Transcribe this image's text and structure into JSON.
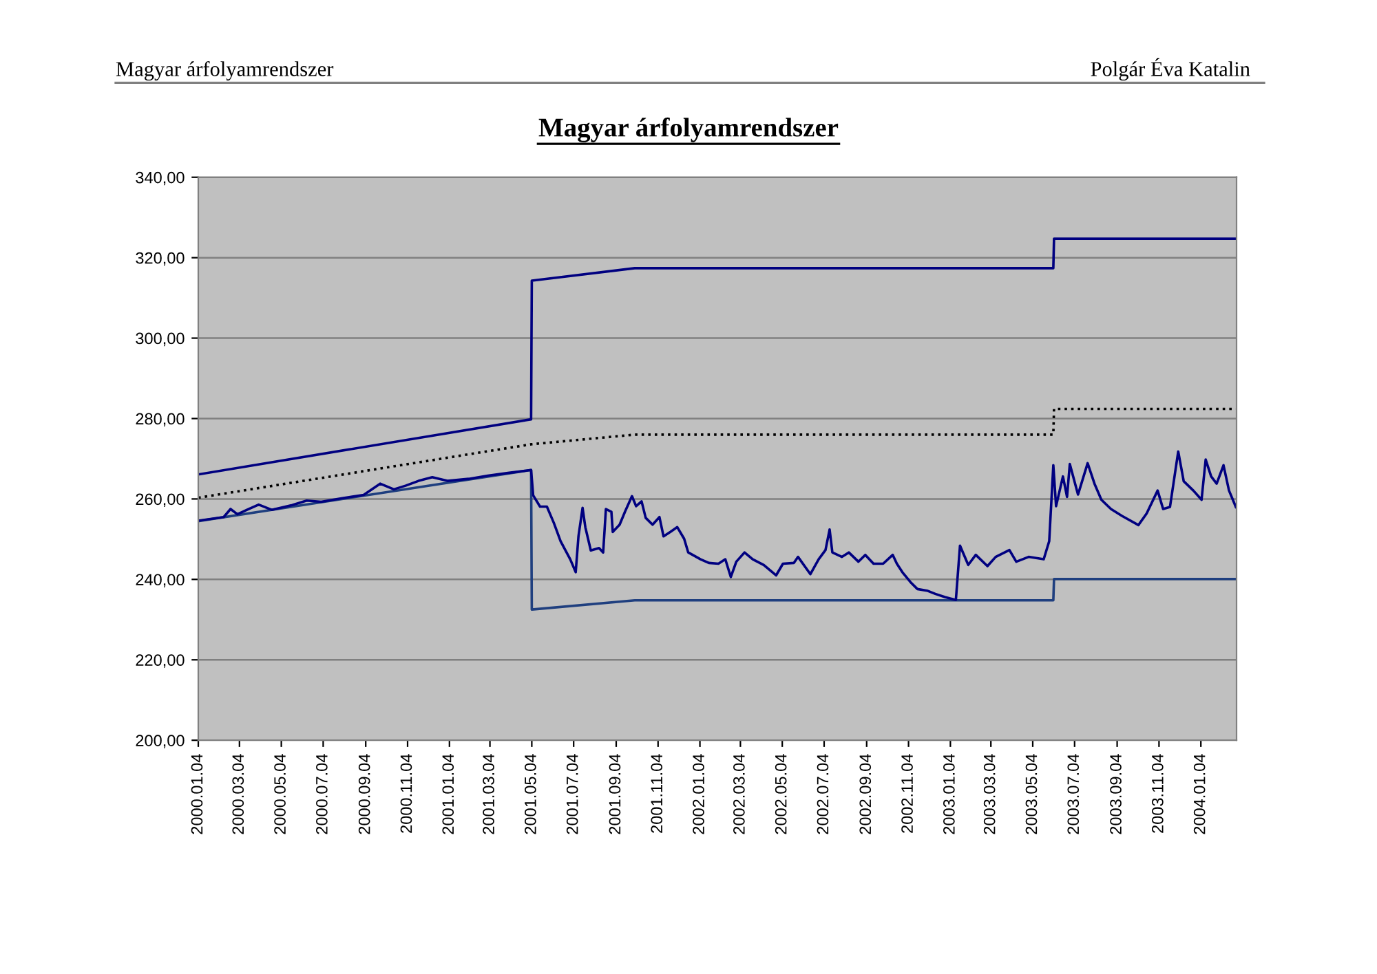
{
  "chart_data": {
    "type": "line",
    "title": "Magyar árfolyamrendszer",
    "annotations": [
      "Magyar árfolyamrendszer",
      "Polgár Éva Katalin"
    ],
    "xlim": [
      "2000-01-04",
      "2004-02-25"
    ],
    "xticks": [
      {
        "value": "2000-01-04",
        "label": "2000.01.04"
      },
      {
        "value": "2000-03-04",
        "label": "2000.03.04"
      },
      {
        "value": "2000-05-04",
        "label": "2000.05.04"
      },
      {
        "value": "2000-07-04",
        "label": "2000.07.04"
      },
      {
        "value": "2000-09-04",
        "label": "2000.09.04"
      },
      {
        "value": "2000-11-04",
        "label": "2000.11.04"
      },
      {
        "value": "2001-01-04",
        "label": "2001.01.04"
      },
      {
        "value": "2001-03-04",
        "label": "2001.03.04"
      },
      {
        "value": "2001-05-04",
        "label": "2001.05.04"
      },
      {
        "value": "2001-07-04",
        "label": "2001.07.04"
      },
      {
        "value": "2001-09-04",
        "label": "2001.09.04"
      },
      {
        "value": "2001-11-04",
        "label": "2001.11.04"
      },
      {
        "value": "2002-01-04",
        "label": "2002.01.04"
      },
      {
        "value": "2002-03-04",
        "label": "2002.03.04"
      },
      {
        "value": "2002-05-04",
        "label": "2002.05.04"
      },
      {
        "value": "2002-07-04",
        "label": "2002.07.04"
      },
      {
        "value": "2002-09-04",
        "label": "2002.09.04"
      },
      {
        "value": "2002-11-04",
        "label": "2002.11.04"
      },
      {
        "value": "2003-01-04",
        "label": "2003.01.04"
      },
      {
        "value": "2003-03-04",
        "label": "2003.03.04"
      },
      {
        "value": "2003-05-04",
        "label": "2003.05.04"
      },
      {
        "value": "2003-07-04",
        "label": "2003.07.04"
      },
      {
        "value": "2003-09-04",
        "label": "2003.09.04"
      },
      {
        "value": "2003-11-04",
        "label": "2003.11.04"
      },
      {
        "value": "2004-01-04",
        "label": "2004.01.04"
      }
    ],
    "ylim": [
      200,
      340
    ],
    "yticks": [
      {
        "value": 200,
        "label": "200,00"
      },
      {
        "value": 220,
        "label": "220,00"
      },
      {
        "value": 240,
        "label": "240,00"
      },
      {
        "value": 260,
        "label": "260,00"
      },
      {
        "value": 280,
        "label": "280,00"
      },
      {
        "value": 300,
        "label": "300,00"
      },
      {
        "value": 320,
        "label": "320,00"
      },
      {
        "value": 340,
        "label": "340,00"
      }
    ],
    "grid": "y",
    "legend": false,
    "marker": "none",
    "series": [
      {
        "color": "#000080",
        "line_style": "solid",
        "x": [
          "2000-01-04",
          "2001-05-03",
          "2001-05-04",
          "2001-10-01",
          "2003-06-03",
          "2003-06-04",
          "2004-02-25"
        ],
        "values": [
          266.1,
          279.8,
          314.3,
          317.4,
          317.4,
          324.7,
          324.7
        ]
      },
      {
        "color": "#000000",
        "line_style": "dotted",
        "x": [
          "2000-01-04",
          "2001-05-03",
          "2001-10-01",
          "2003-06-03",
          "2003-06-04",
          "2004-02-25"
        ],
        "values": [
          260.3,
          273.6,
          276.0,
          276.0,
          282.4,
          282.4
        ]
      },
      {
        "color": "#1f3f7f",
        "line_style": "solid",
        "x": [
          "2000-01-04",
          "2001-05-03",
          "2001-05-04",
          "2001-10-01",
          "2003-06-03",
          "2003-06-04",
          "2004-02-25"
        ],
        "values": [
          254.5,
          267.2,
          232.5,
          234.8,
          234.8,
          240.1,
          240.1
        ]
      },
      {
        "color": "#000080",
        "line_style": "solid",
        "x": [
          "2000-01-04",
          "2000-02-10",
          "2000-02-20",
          "2000-03-01",
          "2000-03-15",
          "2000-04-01",
          "2000-04-20",
          "2000-05-20",
          "2000-06-10",
          "2000-07-01",
          "2000-08-01",
          "2000-09-01",
          "2000-09-25",
          "2000-10-15",
          "2000-11-01",
          "2000-11-20",
          "2000-12-10",
          "2001-01-01",
          "2001-02-01",
          "2001-03-01",
          "2001-04-01",
          "2001-05-03",
          "2001-05-06",
          "2001-05-16",
          "2001-05-26",
          "2001-06-05",
          "2001-06-15",
          "2001-06-29",
          "2001-07-07",
          "2001-07-11",
          "2001-07-17",
          "2001-07-21",
          "2001-07-29",
          "2001-08-10",
          "2001-08-16",
          "2001-08-20",
          "2001-08-28",
          "2001-08-30",
          "2001-09-09",
          "2001-09-17",
          "2001-09-27",
          "2001-10-03",
          "2001-10-11",
          "2001-10-17",
          "2001-10-27",
          "2001-11-06",
          "2001-11-12",
          "2001-11-22",
          "2001-12-02",
          "2001-12-12",
          "2001-12-18",
          "2002-01-05",
          "2002-01-17",
          "2002-01-31",
          "2002-02-10",
          "2002-02-18",
          "2002-02-26",
          "2002-03-10",
          "2002-03-22",
          "2002-04-07",
          "2002-04-25",
          "2002-05-05",
          "2002-05-21",
          "2002-05-27",
          "2002-06-14",
          "2002-06-26",
          "2002-07-06",
          "2002-07-12",
          "2002-07-16",
          "2002-07-30",
          "2002-08-09",
          "2002-08-23",
          "2002-09-02",
          "2002-09-14",
          "2002-09-28",
          "2002-10-12",
          "2002-10-18",
          "2002-10-26",
          "2002-11-07",
          "2002-11-17",
          "2002-12-01",
          "2002-12-13",
          "2002-12-27",
          "2003-01-12",
          "2003-01-18",
          "2003-01-30",
          "2003-02-10",
          "2003-02-27",
          "2003-03-11",
          "2003-03-31",
          "2003-04-10",
          "2003-04-28",
          "2003-05-20",
          "2003-05-28",
          "2003-06-03",
          "2003-06-07",
          "2003-06-17",
          "2003-06-23",
          "2003-06-27",
          "2003-07-09",
          "2003-07-23",
          "2003-08-02",
          "2003-08-12",
          "2003-08-26",
          "2003-09-11",
          "2003-10-05",
          "2003-10-17",
          "2003-11-02",
          "2003-11-10",
          "2003-11-20",
          "2003-12-02",
          "2003-12-10",
          "2003-12-24",
          "2004-01-05",
          "2004-01-11",
          "2004-01-19",
          "2004-01-27",
          "2004-02-06",
          "2004-02-14",
          "2004-02-24"
        ],
        "values": [
          254.6,
          255.5,
          257.5,
          256.2,
          257.3,
          258.6,
          257.3,
          258.5,
          259.6,
          259.3,
          260.2,
          261.0,
          263.8,
          262.4,
          263.3,
          264.5,
          265.4,
          264.5,
          265.0,
          265.8,
          266.5,
          267.2,
          260.9,
          258.1,
          258.1,
          254.1,
          249.5,
          245.0,
          241.8,
          250.7,
          257.8,
          253.0,
          247.2,
          247.8,
          246.7,
          257.5,
          256.8,
          251.8,
          253.6,
          256.9,
          260.7,
          258.2,
          259.4,
          255.3,
          253.6,
          255.5,
          250.7,
          251.8,
          253.0,
          250.1,
          246.7,
          245.0,
          244.1,
          243.9,
          245.0,
          240.6,
          244.4,
          246.7,
          245.0,
          243.6,
          241.0,
          243.9,
          244.1,
          245.6,
          241.3,
          245.0,
          247.3,
          252.4,
          246.7,
          245.6,
          246.7,
          244.4,
          246.1,
          243.9,
          243.9,
          246.1,
          243.9,
          241.8,
          239.3,
          237.6,
          237.2,
          236.4,
          235.6,
          234.9,
          248.4,
          243.6,
          246.1,
          243.3,
          245.6,
          247.3,
          244.4,
          245.6,
          245.0,
          249.5,
          268.4,
          258.2,
          265.6,
          260.5,
          268.7,
          261.1,
          268.9,
          263.8,
          259.8,
          257.5,
          255.8,
          253.5,
          256.4,
          262.1,
          257.5,
          258.0,
          271.8,
          264.4,
          262.1,
          259.8,
          269.8,
          265.6,
          263.8,
          268.4,
          262.1,
          258.0
        ]
      }
    ]
  }
}
